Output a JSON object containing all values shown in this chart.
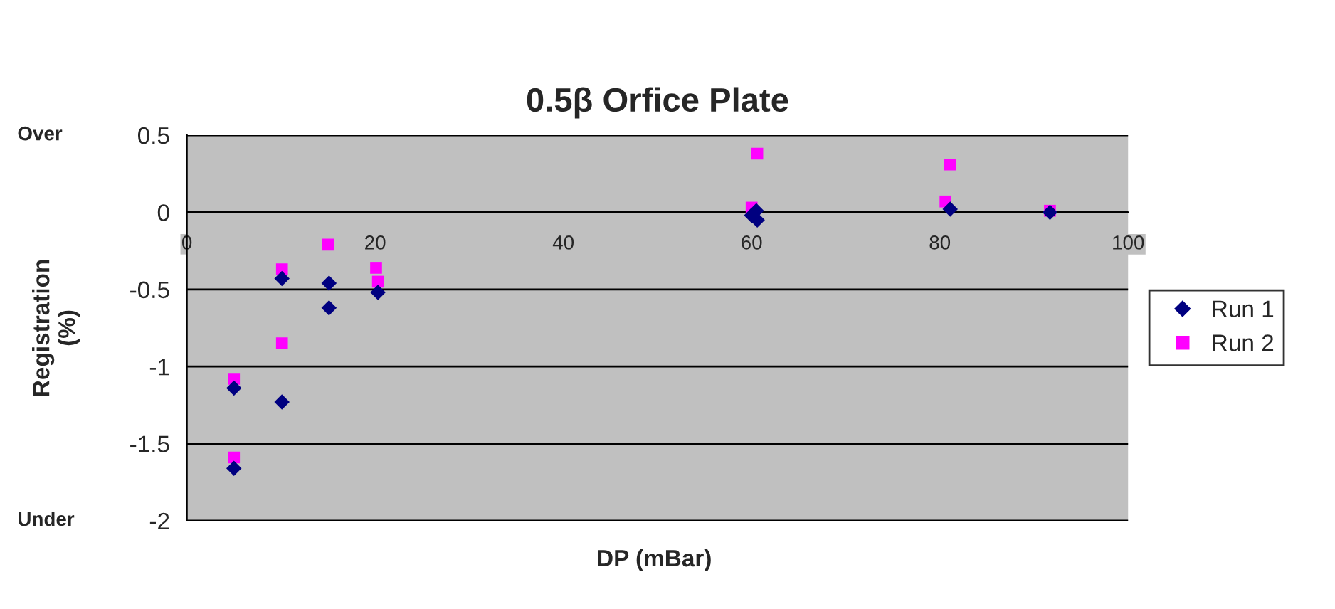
{
  "chart_data": {
    "type": "scatter",
    "title": "0.5β Orfice Plate",
    "xlabel": "DP (mBar)",
    "ylabel": "Registration\n(%)",
    "annotations": [
      "Over",
      "Under"
    ],
    "xlim": [
      0,
      100
    ],
    "xticks": [
      0,
      20,
      40,
      60,
      80,
      100
    ],
    "ylim": [
      -2,
      0.5
    ],
    "yticks": [
      -2,
      -1.5,
      -1,
      -0.5,
      0,
      0.5
    ],
    "grid": "y",
    "legend": "right",
    "series": [
      {
        "name": "Run 1",
        "color": "#000080",
        "marker": "diamond",
        "x": [
          5,
          5,
          10.1,
          10.1,
          15.1,
          15.1,
          20.3,
          60,
          60.6,
          60.5,
          81.1,
          91.7
        ],
        "values": [
          -1.66,
          -1.14,
          -1.23,
          -0.43,
          -0.46,
          -0.62,
          -0.52,
          -0.02,
          -0.05,
          0.01,
          0.02,
          0
        ]
      },
      {
        "name": "Run 2",
        "color": "#ff00ff",
        "marker": "square",
        "x": [
          5,
          5,
          10.1,
          10.1,
          15,
          20.1,
          20.3,
          60,
          60.6,
          80.6,
          81.1,
          91.7
        ],
        "values": [
          -1.59,
          -1.08,
          -0.85,
          -0.37,
          -0.21,
          -0.36,
          -0.45,
          0.03,
          0.38,
          0.07,
          0.31,
          0.01
        ]
      }
    ]
  }
}
